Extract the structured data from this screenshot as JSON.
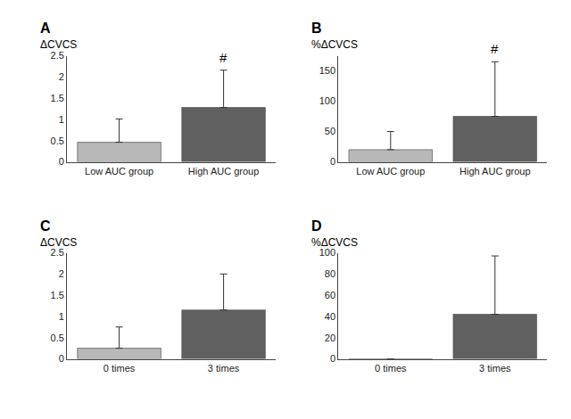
{
  "chart_data": [
    {
      "type": "bar",
      "title": "A",
      "ylabel": "ΔCVCS",
      "categories": [
        "Low AUC group",
        "High AUC group"
      ],
      "values": [
        0.46,
        1.28
      ],
      "errors": [
        0.55,
        0.88
      ],
      "colors": [
        "#b8b8b8",
        "#606060"
      ],
      "ylim": [
        0,
        2.5
      ],
      "yticks": [
        0,
        0.5,
        1,
        1.5,
        2,
        2.5
      ],
      "annotations": [
        {
          "category": "High AUC group",
          "text": "#"
        }
      ],
      "grid": false
    },
    {
      "type": "bar",
      "title": "B",
      "ylabel": "%ΔCVCS",
      "categories": [
        "Low AUC group",
        "High AUC group"
      ],
      "values": [
        20,
        75
      ],
      "errors": [
        30,
        90
      ],
      "colors": [
        "#b8b8b8",
        "#606060"
      ],
      "ylim": [
        0,
        175
      ],
      "yticks": [
        0,
        50,
        100,
        150
      ],
      "annotations": [
        {
          "category": "High AUC group",
          "text": "#"
        }
      ],
      "grid": false
    },
    {
      "type": "bar",
      "title": "C",
      "ylabel": "ΔCVCS",
      "categories": [
        "0 times",
        "3 times"
      ],
      "values": [
        0.25,
        1.15
      ],
      "errors": [
        0.5,
        0.85
      ],
      "colors": [
        "#b8b8b8",
        "#606060"
      ],
      "ylim": [
        0,
        2.5
      ],
      "yticks": [
        0,
        0.5,
        1,
        1.5,
        2,
        2.5
      ],
      "grid": false
    },
    {
      "type": "bar",
      "title": "D",
      "ylabel": "%ΔCVCS",
      "categories": [
        "0 times",
        "3 times"
      ],
      "values": [
        0,
        42
      ],
      "errors": [
        0,
        55
      ],
      "colors": [
        "#b8b8b8",
        "#606060"
      ],
      "ylim": [
        0,
        100
      ],
      "yticks": [
        0,
        20,
        40,
        60,
        80,
        100
      ],
      "grid": false
    }
  ]
}
